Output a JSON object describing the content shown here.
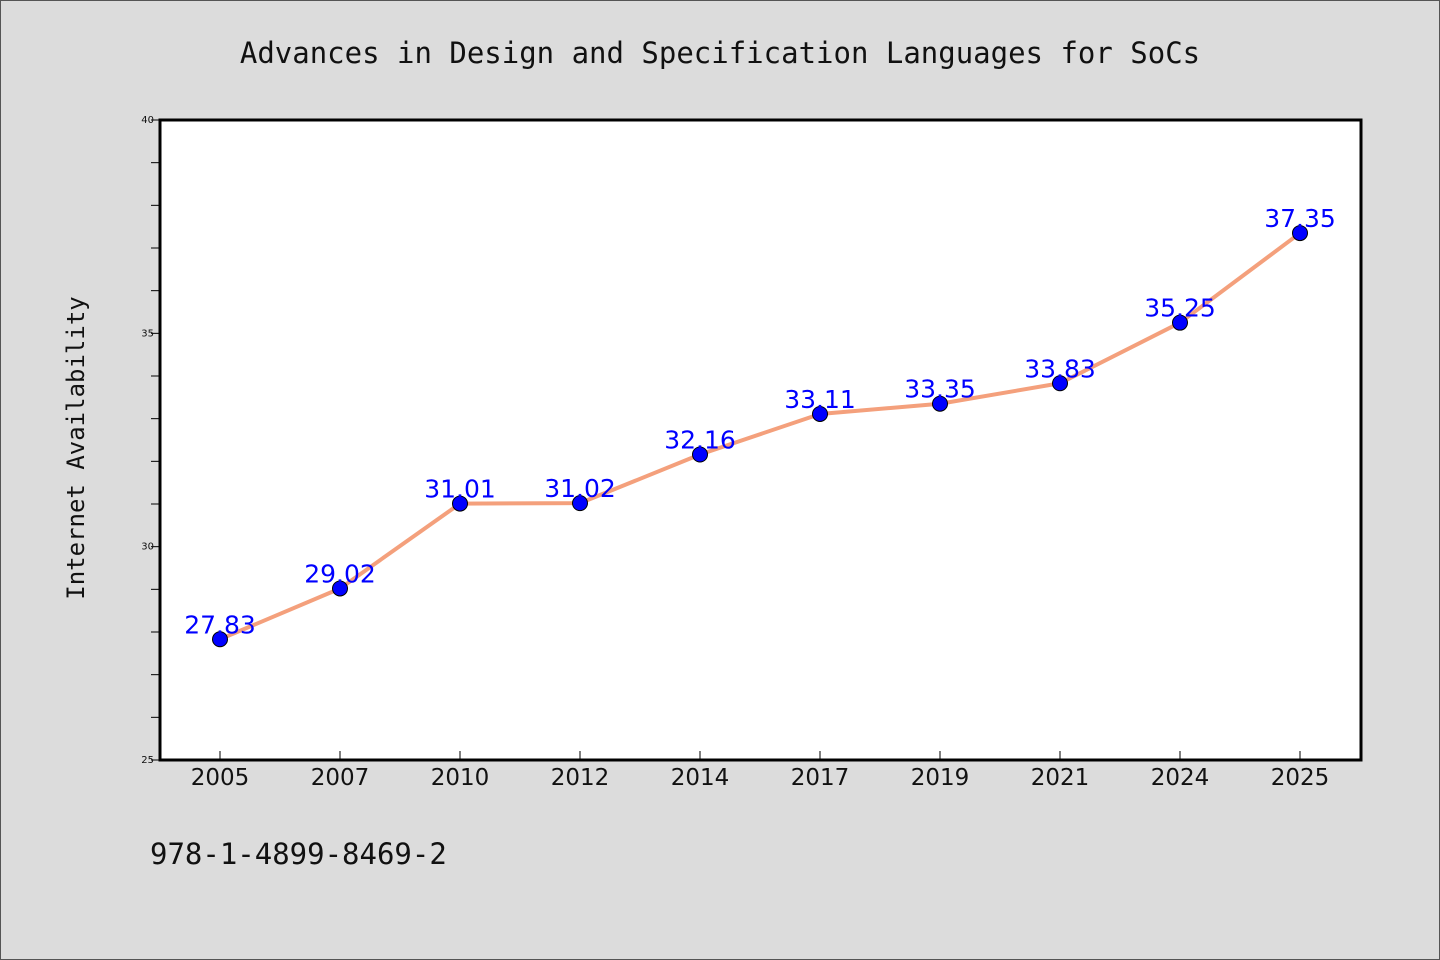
{
  "chart_data": {
    "type": "line",
    "title": "Advances in Design and Specification Languages for SoCs",
    "xlabel": "",
    "ylabel": "Internet Availability",
    "categories": [
      "2005",
      "2007",
      "2010",
      "2012",
      "2014",
      "2017",
      "2019",
      "2021",
      "2024",
      "2025"
    ],
    "series": [
      {
        "values": [
          27.83,
          29.02,
          31.01,
          31.02,
          32.16,
          33.11,
          33.35,
          33.83,
          35.25,
          37.35
        ],
        "labels": [
          "27.83",
          "29.02",
          "31.01",
          "31.02",
          "32.16",
          "33.11",
          "33.35",
          "33.83",
          "35.25",
          "37.35"
        ],
        "line_color": "#f4a07c",
        "marker_color": "#0000ff"
      }
    ],
    "ylim": [
      25,
      40
    ],
    "yticks": [
      25,
      30,
      35,
      40
    ],
    "ytick_labels": [
      "25",
      "30",
      "35",
      "40"
    ],
    "grid": false,
    "legend": "none"
  },
  "footer_text": "978-1-4899-8469-2",
  "colors": {
    "background": "#dcdcdc",
    "plot_background": "#ffffff",
    "line": "#f4a07c",
    "marker": "#0000ff",
    "data_label": "#0000ff"
  }
}
